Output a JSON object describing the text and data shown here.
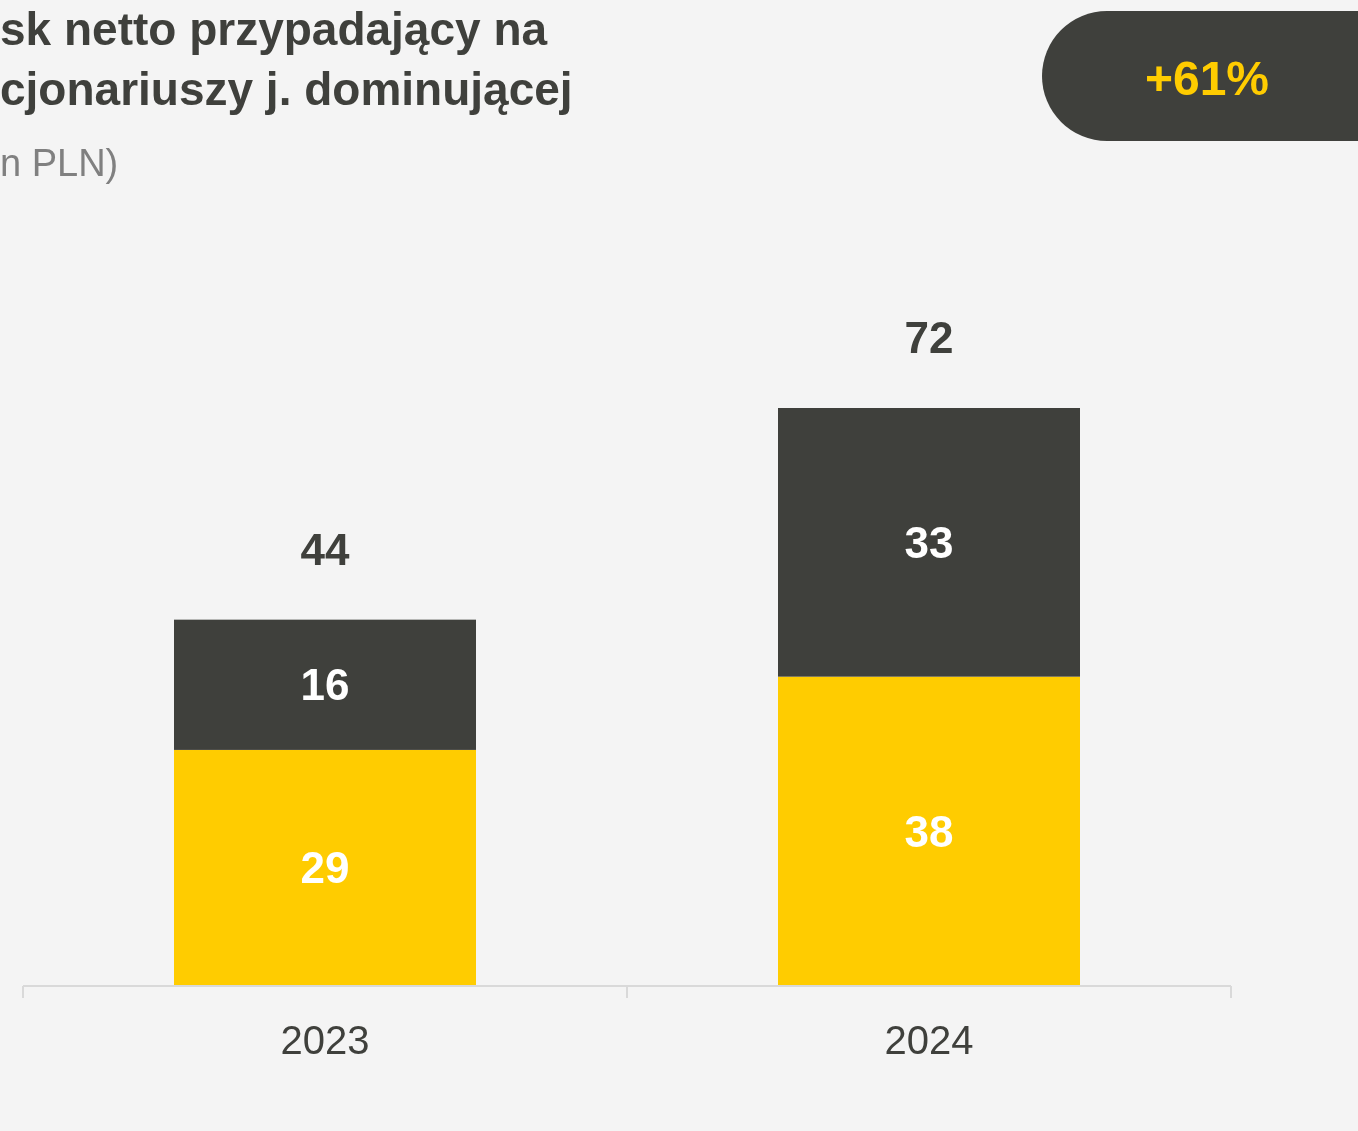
{
  "chart_data": {
    "type": "bar",
    "stacked": true,
    "title": "sk netto przypadający na\ncjonariuszy j. dominującej",
    "subtitle": "n PLN)",
    "annotations": [
      "+61%"
    ],
    "categories": [
      "2023",
      "2024"
    ],
    "series": [
      {
        "color": "#ffcc00",
        "values": [
          29,
          38
        ]
      },
      {
        "color": "#3f403c",
        "values": [
          16,
          33
        ]
      }
    ],
    "data_labels": true,
    "totals": [
      "44",
      "72"
    ]
  }
}
